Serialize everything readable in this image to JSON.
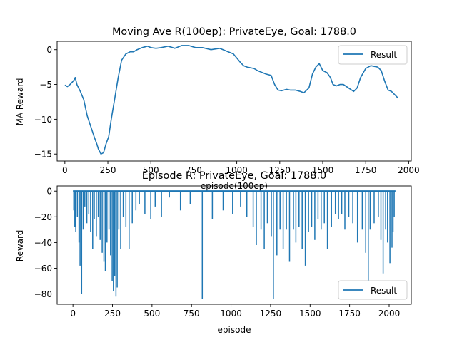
{
  "chart_data": [
    {
      "type": "line",
      "title": "Moving Ave R(100ep): PrivateEye, Goal: 1788.0",
      "xlabel": "episode(100ep)",
      "ylabel": "MA Reward",
      "xlim": [
        -45,
        2015
      ],
      "ylim": [
        -16,
        1.2
      ],
      "xticks": [
        0,
        250,
        500,
        750,
        1000,
        1250,
        1500,
        1750,
        2000
      ],
      "yticks": [
        0,
        -5,
        -10,
        -15
      ],
      "grid": false,
      "legend": {
        "position": "top-right",
        "entries": [
          "Result"
        ]
      },
      "color": "#1f77b4",
      "series": [
        {
          "name": "Result",
          "x": [
            0,
            15,
            30,
            45,
            55,
            60,
            70,
            90,
            110,
            130,
            150,
            170,
            185,
            195,
            210,
            225,
            240,
            255,
            270,
            290,
            310,
            330,
            355,
            380,
            400,
            420,
            450,
            480,
            500,
            530,
            560,
            600,
            640,
            680,
            720,
            760,
            800,
            850,
            900,
            950,
            980,
            1000,
            1020,
            1040,
            1060,
            1080,
            1100,
            1120,
            1140,
            1170,
            1200,
            1220,
            1240,
            1260,
            1275,
            1290,
            1310,
            1340,
            1370,
            1390,
            1420,
            1440,
            1460,
            1480,
            1500,
            1525,
            1545,
            1560,
            1580,
            1600,
            1620,
            1650,
            1680,
            1700,
            1720,
            1750,
            1780,
            1800,
            1820,
            1840,
            1860,
            1880,
            1900,
            1920,
            1940
          ],
          "y": [
            -5.1,
            -5.3,
            -5.0,
            -4.6,
            -4.3,
            -4.0,
            -5.0,
            -6.0,
            -7.2,
            -9.5,
            -11.0,
            -12.5,
            -13.5,
            -14.3,
            -15.0,
            -14.8,
            -13.5,
            -12.5,
            -10.0,
            -7.0,
            -4.0,
            -1.5,
            -0.6,
            -0.3,
            -0.3,
            0.0,
            0.3,
            0.5,
            0.3,
            0.2,
            0.3,
            0.5,
            0.2,
            0.6,
            0.6,
            0.3,
            0.3,
            0.0,
            0.2,
            -0.3,
            -0.6,
            -1.2,
            -1.8,
            -2.3,
            -2.5,
            -2.6,
            -2.7,
            -3.0,
            -3.2,
            -3.5,
            -3.7,
            -5.0,
            -5.8,
            -5.9,
            -5.8,
            -5.7,
            -5.8,
            -5.8,
            -6.0,
            -6.2,
            -5.5,
            -3.5,
            -2.5,
            -2.0,
            -3.0,
            -3.3,
            -4.0,
            -5.0,
            -5.2,
            -5.0,
            -5.0,
            -5.5,
            -6.0,
            -5.5,
            -4.0,
            -2.7,
            -2.3,
            -2.4,
            -2.5,
            -3.0,
            -4.5,
            -5.8,
            -6.0,
            -6.5,
            -7.0
          ]
        }
      ]
    },
    {
      "type": "line",
      "title": "Episode R: PrivateEye, Goal: 1788.0",
      "xlabel": "episode",
      "ylabel": "Reward",
      "xlim": [
        -100,
        2140
      ],
      "ylim": [
        -88,
        4
      ],
      "xticks": [
        0,
        250,
        500,
        750,
        1000,
        1250,
        1500,
        1750,
        2000
      ],
      "yticks": [
        0,
        -20,
        -40,
        -60,
        -80
      ],
      "grid": false,
      "legend": {
        "position": "lower-right",
        "entries": [
          "Result"
        ]
      },
      "color": "#1f77b4",
      "baseline": 0,
      "series": [
        {
          "name": "Result",
          "spikes": [
            [
              5,
              -15
            ],
            [
              12,
              -28
            ],
            [
              18,
              -32
            ],
            [
              28,
              -20
            ],
            [
              38,
              -40
            ],
            [
              45,
              -58
            ],
            [
              55,
              -80
            ],
            [
              65,
              -30
            ],
            [
              75,
              -12
            ],
            [
              88,
              -25
            ],
            [
              100,
              -18
            ],
            [
              112,
              -32
            ],
            [
              125,
              -45
            ],
            [
              135,
              -22
            ],
            [
              148,
              -35
            ],
            [
              160,
              -20
            ],
            [
              172,
              -38
            ],
            [
              185,
              -48
            ],
            [
              196,
              -55
            ],
            [
              205,
              -62
            ],
            [
              215,
              -40
            ],
            [
              228,
              -30
            ],
            [
              238,
              -50
            ],
            [
              248,
              -70
            ],
            [
              256,
              -78
            ],
            [
              264,
              -66
            ],
            [
              272,
              -82
            ],
            [
              280,
              -75
            ],
            [
              290,
              -30
            ],
            [
              302,
              -45
            ],
            [
              318,
              -20
            ],
            [
              335,
              -28
            ],
            [
              355,
              -45
            ],
            [
              375,
              -25
            ],
            [
              398,
              -15
            ],
            [
              420,
              -10
            ],
            [
              455,
              -18
            ],
            [
              492,
              -22
            ],
            [
              520,
              -12
            ],
            [
              560,
              -20
            ],
            [
              610,
              -5
            ],
            [
              680,
              -15
            ],
            [
              742,
              -10
            ],
            [
              818,
              -84
            ],
            [
              882,
              -22
            ],
            [
              950,
              -15
            ],
            [
              1010,
              -18
            ],
            [
              1060,
              -12
            ],
            [
              1100,
              -20
            ],
            [
              1140,
              -28
            ],
            [
              1160,
              -42
            ],
            [
              1190,
              -30
            ],
            [
              1210,
              -45
            ],
            [
              1230,
              -25
            ],
            [
              1255,
              -35
            ],
            [
              1268,
              -84
            ],
            [
              1290,
              -50
            ],
            [
              1310,
              -30
            ],
            [
              1330,
              -45
            ],
            [
              1350,
              -30
            ],
            [
              1370,
              -55
            ],
            [
              1395,
              -30
            ],
            [
              1410,
              -40
            ],
            [
              1430,
              -28
            ],
            [
              1450,
              -45
            ],
            [
              1470,
              -58
            ],
            [
              1490,
              -32
            ],
            [
              1510,
              -28
            ],
            [
              1530,
              -38
            ],
            [
              1550,
              -22
            ],
            [
              1570,
              -30
            ],
            [
              1590,
              -25
            ],
            [
              1610,
              -45
            ],
            [
              1635,
              -28
            ],
            [
              1660,
              -18
            ],
            [
              1680,
              -22
            ],
            [
              1700,
              -18
            ],
            [
              1720,
              -30
            ],
            [
              1745,
              -20
            ],
            [
              1770,
              -25
            ],
            [
              1800,
              -40
            ],
            [
              1830,
              -30
            ],
            [
              1852,
              -48
            ],
            [
              1868,
              -70
            ],
            [
              1880,
              -30
            ],
            [
              1905,
              -25
            ],
            [
              1932,
              -20
            ],
            [
              1948,
              -38
            ],
            [
              1962,
              -64
            ],
            [
              1978,
              -30
            ],
            [
              1990,
              -40
            ],
            [
              2005,
              -56
            ],
            [
              2018,
              -44
            ],
            [
              2025,
              -32
            ],
            [
              2032,
              -20
            ]
          ]
        }
      ]
    }
  ]
}
